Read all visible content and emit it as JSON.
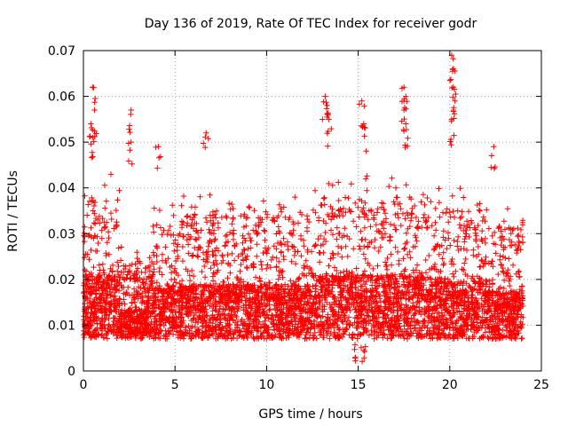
{
  "chart_data": {
    "type": "scatter",
    "title": "Day 136 of 2019, Rate Of TEC Index for receiver godr",
    "xlabel": "GPS time / hours",
    "ylabel": "ROTI / TECUs",
    "xlim": [
      0,
      25
    ],
    "ylim": [
      0,
      0.07
    ],
    "x_ticks": [
      0,
      5,
      10,
      15,
      20,
      25
    ],
    "x_tick_labels": [
      "0",
      "5",
      "10",
      "15",
      "20",
      "25"
    ],
    "y_ticks": [
      0,
      0.01,
      0.02,
      0.03,
      0.04,
      0.05,
      0.06,
      0.07
    ],
    "y_tick_labels": [
      "0",
      "0.01",
      "0.02",
      "0.03",
      "0.04",
      "0.05",
      "0.06",
      "0.07"
    ],
    "grid": true,
    "marker": "+",
    "series_color": "#ff0000",
    "x_data_range_hours": [
      0,
      24
    ],
    "typical_range": [
      0.005,
      0.03
    ],
    "outliers": [
      {
        "x": 0.5,
        "y": 0.062
      },
      {
        "x": 0.6,
        "y": 0.057
      },
      {
        "x": 0.4,
        "y": 0.054
      },
      {
        "x": 0.5,
        "y": 0.051
      },
      {
        "x": 2.6,
        "y": 0.057
      },
      {
        "x": 2.6,
        "y": 0.05
      },
      {
        "x": 4.1,
        "y": 0.049
      },
      {
        "x": 6.7,
        "y": 0.052
      },
      {
        "x": 13.2,
        "y": 0.06
      },
      {
        "x": 13.3,
        "y": 0.058
      },
      {
        "x": 13.4,
        "y": 0.055
      },
      {
        "x": 15.2,
        "y": 0.059
      },
      {
        "x": 15.3,
        "y": 0.054
      },
      {
        "x": 17.5,
        "y": 0.062
      },
      {
        "x": 17.6,
        "y": 0.06
      },
      {
        "x": 17.5,
        "y": 0.057
      },
      {
        "x": 17.6,
        "y": 0.054
      },
      {
        "x": 20.1,
        "y": 0.069
      },
      {
        "x": 20.2,
        "y": 0.066
      },
      {
        "x": 20.2,
        "y": 0.062
      },
      {
        "x": 20.2,
        "y": 0.057
      },
      {
        "x": 20.1,
        "y": 0.055
      },
      {
        "x": 22.4,
        "y": 0.049
      }
    ]
  }
}
